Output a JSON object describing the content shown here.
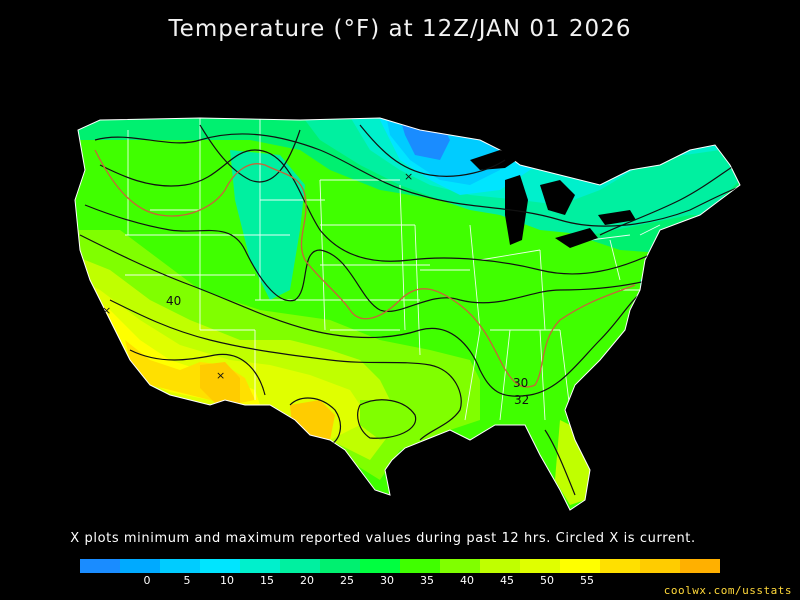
{
  "title": "Temperature (°F) at 12Z/JAN 01 2026",
  "caption": "X plots minimum and maximum reported values during past 12 hrs. Circled X is current.",
  "credit": "coolwx.com/usstats",
  "contour_labels": [
    "40",
    "30",
    "32"
  ],
  "legend": {
    "colors": [
      "#1a8cff",
      "#00aaff",
      "#00ccff",
      "#00e5ff",
      "#00f0cc",
      "#00f0a0",
      "#00f070",
      "#00ff40",
      "#40ff00",
      "#80ff00",
      "#c0ff00",
      "#e0ff00",
      "#ffff00",
      "#ffe000",
      "#ffcc00",
      "#ffb000"
    ],
    "ticks": [
      "0",
      "5",
      "10",
      "15",
      "20",
      "25",
      "30",
      "35",
      "40",
      "45",
      "50",
      "55"
    ]
  }
}
